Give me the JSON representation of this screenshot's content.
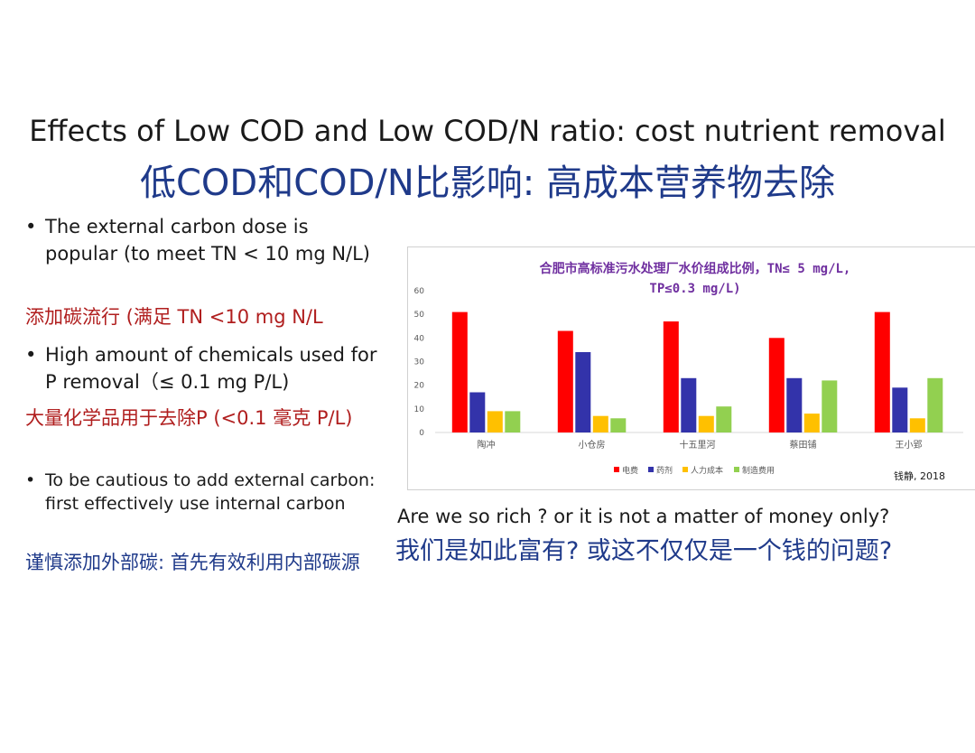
{
  "slide": {
    "title_en": "Effects of Low COD and Low COD/N ratio: cost nutrient removal",
    "title_zh": "低COD和COD/N比影响: 高成本营养物去除"
  },
  "bullets": [
    {
      "en": "The external carbon dose is popular (to meet TN < 10 mg N/L)",
      "zh": "添加碳流行 (满足 TN <10 mg N/L"
    },
    {
      "en": "High amount of chemicals used for P removal（≤  0.1 mg P/L)",
      "zh": "大量化学品用于去除P (<0.1 毫克 P/L)"
    },
    {
      "en": "To be cautious to add external carbon: first effectively use internal carbon",
      "zh": "谨慎添加外部碳: 首先有效利用内部碳源"
    }
  ],
  "bullet_symbol": "•",
  "question": {
    "en": "Are we so rich ? or it is not a matter of money only?",
    "zh": "我们是如此富有? 或这不仅仅是一个钱的问题?"
  },
  "chart_data": {
    "type": "bar",
    "title": "合肥市高标准污水处理厂水价组成比例，TN≤ 5 mg/L, TP≤0.3 mg/L)",
    "title_line1": "合肥市高标准污水处理厂水价组成比例，TN≤ 5 mg/L,",
    "title_line2": "TP≤0.3 mg/L)",
    "categories": [
      "陶冲",
      "小仓房",
      "十五里河",
      "蔡田铺",
      "王小郢"
    ],
    "series": [
      {
        "name": "电费",
        "color": "#ff0000",
        "values": [
          51,
          43,
          47,
          40,
          51
        ]
      },
      {
        "name": "药剂",
        "color": "#3333aa",
        "values": [
          17,
          34,
          23,
          23,
          19
        ]
      },
      {
        "name": "人力成本",
        "color": "#ffc000",
        "values": [
          9,
          7,
          7,
          8,
          6
        ]
      },
      {
        "name": "制造费用",
        "color": "#92d050",
        "values": [
          9,
          6,
          11,
          22,
          23
        ]
      }
    ],
    "ylim": [
      0,
      60
    ],
    "yticks": [
      "0",
      "10",
      "20",
      "30",
      "40",
      "50",
      "60"
    ],
    "grid": false,
    "legend": "bottom-center",
    "source_note": "钱静, 2018",
    "title_color": "#7030a0"
  }
}
